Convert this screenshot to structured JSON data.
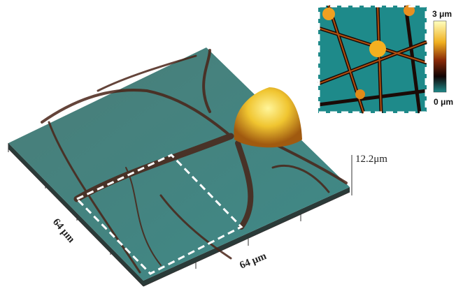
{
  "labels": {
    "height": "12.2μm",
    "left_axis": "64 μm",
    "bottom_axis": "64 μm"
  },
  "inset": {
    "colorbar_max": "3 μm",
    "colorbar_min": "0 μm"
  }
}
